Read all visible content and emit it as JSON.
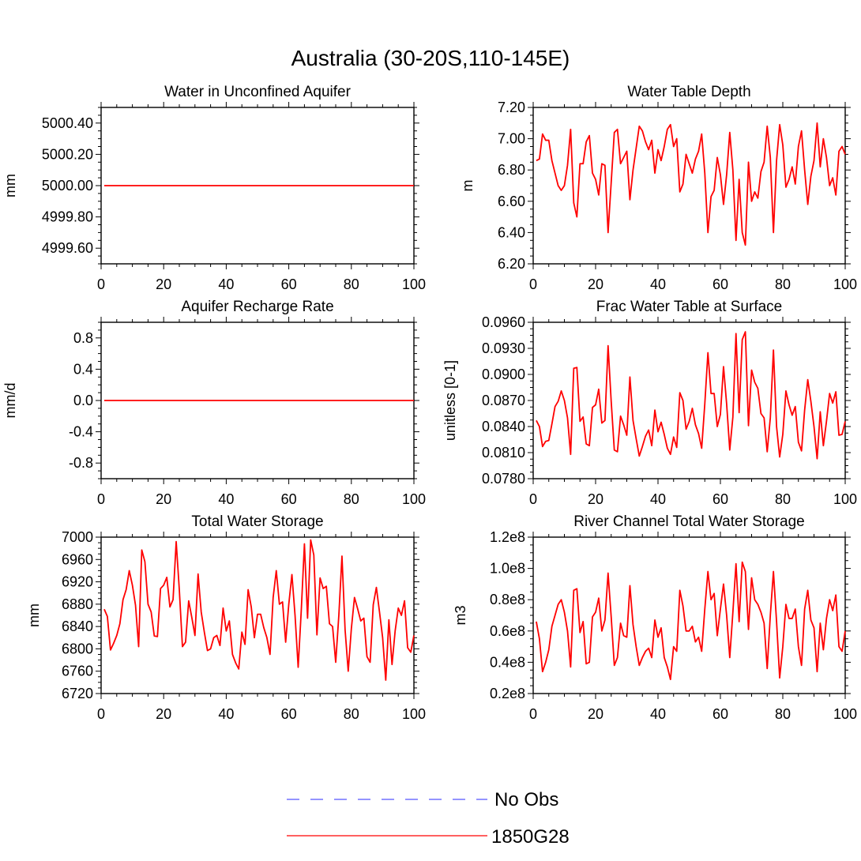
{
  "title": "Australia (30-20S,110-145E)",
  "colors": {
    "model": "#ff0000",
    "obs": "#7070ff",
    "axis": "#000000"
  },
  "legend": {
    "entries": [
      {
        "label": "No Obs",
        "style": "dashed",
        "color": "#7070ff"
      },
      {
        "label": "1850G28",
        "style": "solid",
        "color": "#ff0000"
      }
    ]
  },
  "chart_data": [
    {
      "type": "line",
      "title": "Water in Unconfined Aquifer",
      "xlabel": "",
      "ylabel": "mm",
      "xlim": [
        0,
        100
      ],
      "ylim": [
        4999.5,
        5000.5
      ],
      "yticks": [
        4999.6,
        4999.8,
        5000.0,
        5000.2,
        5000.4
      ],
      "yticklabels": [
        "4999.60",
        "4999.80",
        "5000.00",
        "5000.20",
        "5000.40"
      ],
      "xticks": [
        0,
        20,
        40,
        60,
        80,
        100
      ],
      "xticklabels": [
        "0",
        "20",
        "40",
        "60",
        "80",
        "100"
      ],
      "series": [
        {
          "name": "1850G28",
          "x_start": 1,
          "x_end": 100,
          "constant": 5000.0
        }
      ]
    },
    {
      "type": "line",
      "title": "Water Table Depth",
      "xlabel": "",
      "ylabel": "m",
      "xlim": [
        0,
        100
      ],
      "ylim": [
        6.2,
        7.2
      ],
      "yticks": [
        6.2,
        6.4,
        6.6,
        6.8,
        7.0,
        7.2
      ],
      "yticklabels": [
        "6.20",
        "6.40",
        "6.60",
        "6.80",
        "7.00",
        "7.20"
      ],
      "xticks": [
        0,
        20,
        40,
        60,
        80,
        100
      ],
      "xticklabels": [
        "0",
        "20",
        "40",
        "60",
        "80",
        "100"
      ],
      "series": [
        {
          "name": "1850G28",
          "x_start": 1,
          "values": [
            6.86,
            6.87,
            7.03,
            6.99,
            6.99,
            6.86,
            6.78,
            6.7,
            6.67,
            6.7,
            6.83,
            7.06,
            6.59,
            6.5,
            6.84,
            6.84,
            6.98,
            7.02,
            6.78,
            6.74,
            6.64,
            6.84,
            6.83,
            6.4,
            6.72,
            7.04,
            7.06,
            6.84,
            6.88,
            6.92,
            6.61,
            6.8,
            6.94,
            7.08,
            7.05,
            6.98,
            6.93,
            6.99,
            6.78,
            6.93,
            6.86,
            6.95,
            7.06,
            7.09,
            6.95,
            7.0,
            6.66,
            6.71,
            6.9,
            6.84,
            6.78,
            6.87,
            6.92,
            7.03,
            6.78,
            6.4,
            6.63,
            6.67,
            6.88,
            6.77,
            6.58,
            6.77,
            7.04,
            6.8,
            6.35,
            6.74,
            6.4,
            6.32,
            6.85,
            6.6,
            6.66,
            6.62,
            6.79,
            6.85,
            7.08,
            6.88,
            6.4,
            6.86,
            7.09,
            6.96,
            6.69,
            6.74,
            6.82,
            6.71,
            6.95,
            7.05,
            6.8,
            6.58,
            6.76,
            6.86,
            7.1,
            6.82,
            7.0,
            6.88,
            6.7,
            6.75,
            6.64,
            6.92,
            6.95,
            6.9
          ]
        }
      ]
    },
    {
      "type": "line",
      "title": "Aquifer Recharge Rate",
      "xlabel": "",
      "ylabel": "mm/d",
      "xlim": [
        0,
        100
      ],
      "ylim": [
        -1.0,
        1.0
      ],
      "yticks": [
        -0.8,
        -0.4,
        0.0,
        0.4,
        0.8
      ],
      "yticklabels": [
        "-0.8",
        "-0.4",
        "0.0",
        "0.4",
        "0.8"
      ],
      "xticks": [
        0,
        20,
        40,
        60,
        80,
        100
      ],
      "xticklabels": [
        "0",
        "20",
        "40",
        "60",
        "80",
        "100"
      ],
      "series": [
        {
          "name": "1850G28",
          "x_start": 1,
          "x_end": 100,
          "constant": 0.0
        }
      ]
    },
    {
      "type": "line",
      "title": "Frac Water Table at Surface",
      "xlabel": "",
      "ylabel": "unitless [0-1]",
      "xlim": [
        0,
        100
      ],
      "ylim": [
        0.078,
        0.096
      ],
      "yticks": [
        0.078,
        0.081,
        0.084,
        0.087,
        0.09,
        0.093,
        0.096
      ],
      "yticklabels": [
        "0.0780",
        "0.0810",
        "0.0840",
        "0.0870",
        "0.0900",
        "0.0930",
        "0.0960"
      ],
      "xticks": [
        0,
        20,
        40,
        60,
        80,
        100
      ],
      "xticklabels": [
        "0",
        "20",
        "40",
        "60",
        "80",
        "100"
      ],
      "series": [
        {
          "name": "1850G28",
          "x_start": 1,
          "values": [
            0.0847,
            0.084,
            0.0817,
            0.0823,
            0.0824,
            0.0843,
            0.0863,
            0.0869,
            0.0881,
            0.087,
            0.085,
            0.0808,
            0.0907,
            0.0908,
            0.0846,
            0.0851,
            0.082,
            0.0818,
            0.0862,
            0.0865,
            0.0883,
            0.0844,
            0.0847,
            0.0933,
            0.0869,
            0.0813,
            0.0811,
            0.0852,
            0.0842,
            0.083,
            0.0897,
            0.0847,
            0.0826,
            0.0806,
            0.0817,
            0.0829,
            0.0836,
            0.0818,
            0.0859,
            0.0834,
            0.0845,
            0.0831,
            0.0815,
            0.0808,
            0.0828,
            0.0816,
            0.0879,
            0.087,
            0.0837,
            0.0846,
            0.0861,
            0.0842,
            0.0832,
            0.0815,
            0.0866,
            0.0925,
            0.0878,
            0.0878,
            0.084,
            0.0854,
            0.0909,
            0.0866,
            0.0813,
            0.0851,
            0.0947,
            0.0856,
            0.094,
            0.0949,
            0.0841,
            0.0905,
            0.0891,
            0.0884,
            0.0855,
            0.085,
            0.0811,
            0.085,
            0.0928,
            0.084,
            0.0805,
            0.0831,
            0.0881,
            0.0865,
            0.0853,
            0.0863,
            0.0822,
            0.0812,
            0.0859,
            0.0894,
            0.0869,
            0.084,
            0.0803,
            0.0857,
            0.0818,
            0.0846,
            0.0878,
            0.0867,
            0.088,
            0.083,
            0.0831,
            0.0846
          ]
        }
      ]
    },
    {
      "type": "line",
      "title": "Total Water Storage",
      "xlabel": "",
      "ylabel": "mm",
      "xlim": [
        0,
        100
      ],
      "ylim": [
        6720,
        7000
      ],
      "yticks": [
        6720,
        6760,
        6800,
        6840,
        6880,
        6920,
        6960,
        7000
      ],
      "yticklabels": [
        "6720",
        "6760",
        "6800",
        "6840",
        "6880",
        "6920",
        "6960",
        "7000"
      ],
      "xticks": [
        0,
        20,
        40,
        60,
        80,
        100
      ],
      "xticklabels": [
        "0",
        "20",
        "40",
        "60",
        "80",
        "100"
      ],
      "series": [
        {
          "name": "1850G28",
          "x_start": 1,
          "values": [
            6871,
            6858,
            6798,
            6810,
            6824,
            6845,
            6888,
            6906,
            6940,
            6914,
            6878,
            6804,
            6977,
            6956,
            6880,
            6866,
            6823,
            6822,
            6908,
            6914,
            6928,
            6875,
            6888,
            6992,
            6906,
            6804,
            6812,
            6886,
            6856,
            6824,
            6934,
            6866,
            6830,
            6797,
            6800,
            6820,
            6824,
            6806,
            6873,
            6832,
            6850,
            6790,
            6775,
            6764,
            6830,
            6808,
            6906,
            6875,
            6820,
            6862,
            6862,
            6838,
            6820,
            6790,
            6892,
            6940,
            6880,
            6884,
            6812,
            6880,
            6933,
            6860,
            6767,
            6870,
            6988,
            6855,
            6995,
            6968,
            6825,
            6927,
            6908,
            6912,
            6845,
            6840,
            6776,
            6860,
            6966,
            6834,
            6760,
            6836,
            6892,
            6872,
            6850,
            6855,
            6786,
            6776,
            6879,
            6910,
            6866,
            6820,
            6744,
            6852,
            6772,
            6832,
            6873,
            6860,
            6886,
            6802,
            6794,
            6824
          ]
        }
      ]
    },
    {
      "type": "line",
      "title": "River Channel Total Water Storage",
      "xlabel": "",
      "ylabel": "m3",
      "xlim": [
        0,
        100
      ],
      "ylim": [
        20000000.0,
        120000000.0
      ],
      "yticks": [
        20000000.0,
        40000000.0,
        60000000.0,
        80000000.0,
        100000000.0,
        120000000.0
      ],
      "yticklabels": [
        "0.2e8",
        "0.4e8",
        "0.6e8",
        "0.8e8",
        "1.0e8",
        "1.2e8"
      ],
      "xticks": [
        0,
        20,
        40,
        60,
        80,
        100
      ],
      "xticklabels": [
        "0",
        "20",
        "40",
        "60",
        "80",
        "100"
      ],
      "series": [
        {
          "name": "1850G28",
          "x_start": 1,
          "values": [
            66000000.0,
            55000000.0,
            34000000.0,
            40000000.0,
            48000000.0,
            63000000.0,
            70000000.0,
            77000000.0,
            80000000.0,
            72000000.0,
            60000000.0,
            37000000.0,
            86000000.0,
            87000000.0,
            59000000.0,
            66000000.0,
            39000000.0,
            40000000.0,
            69000000.0,
            72000000.0,
            81000000.0,
            60000000.0,
            67000000.0,
            97000000.0,
            69000000.0,
            38000000.0,
            43000000.0,
            65000000.0,
            57000000.0,
            56000000.0,
            89000000.0,
            64000000.0,
            50000000.0,
            38000000.0,
            43000000.0,
            47000000.0,
            49000000.0,
            43000000.0,
            67000000.0,
            56000000.0,
            62000000.0,
            43000000.0,
            37000000.0,
            29000000.0,
            50000000.0,
            47000000.0,
            86000000.0,
            76000000.0,
            60000000.0,
            60000000.0,
            63000000.0,
            53000000.0,
            56000000.0,
            47000000.0,
            74000000.0,
            98000000.0,
            80000000.0,
            84000000.0,
            57000000.0,
            74000000.0,
            90000000.0,
            70000000.0,
            43000000.0,
            72000000.0,
            103000000.0,
            66000000.0,
            104000000.0,
            98000000.0,
            61000000.0,
            94000000.0,
            80000000.0,
            77000000.0,
            72000000.0,
            65000000.0,
            36000000.0,
            70000000.0,
            98000000.0,
            66000000.0,
            30000000.0,
            50000000.0,
            77000000.0,
            68000000.0,
            68000000.0,
            74000000.0,
            50000000.0,
            38000000.0,
            74000000.0,
            86000000.0,
            67000000.0,
            62000000.0,
            34000000.0,
            65000000.0,
            48000000.0,
            68000000.0,
            80000000.0,
            73000000.0,
            83000000.0,
            50000000.0,
            47000000.0,
            60000000.0
          ]
        }
      ]
    }
  ]
}
